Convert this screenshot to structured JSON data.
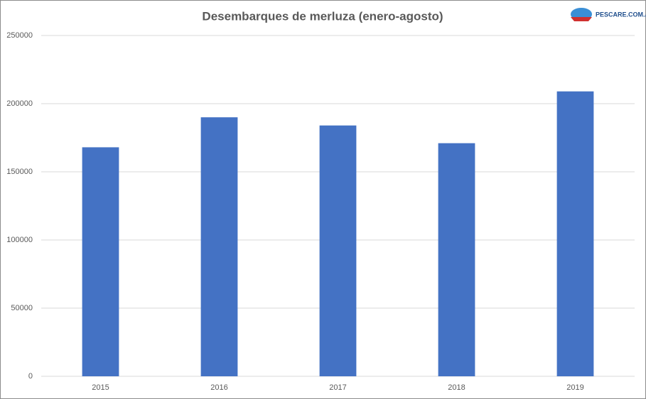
{
  "chart_data": {
    "type": "bar",
    "title": "Desembarques de merluza (enero-agosto)",
    "logo_text": "PESCARE.COM.AR",
    "categories": [
      "2015",
      "2016",
      "2017",
      "2018",
      "2019"
    ],
    "values": [
      168000,
      190000,
      184000,
      171000,
      209000
    ],
    "color": "#4472c4",
    "ylim": [
      0,
      250000
    ],
    "yticks": [
      0,
      50000,
      100000,
      150000,
      200000,
      250000
    ],
    "grid": true
  }
}
